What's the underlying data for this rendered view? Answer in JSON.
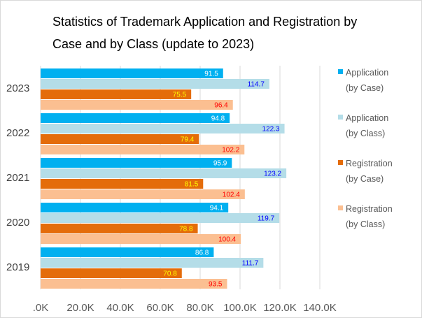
{
  "chart": {
    "title_line1": "Statistics of Trademark Application and Registration by",
    "title_line2": "Case and by Class (update to 2023)"
  },
  "legend": [
    {
      "line1": "Application",
      "line2": "(by Case)",
      "color": "#00b0f0"
    },
    {
      "line1": "Application",
      "line2": "(by Class)",
      "color": "#b4dde8"
    },
    {
      "line1": "Registration",
      "line2": "(by Case)",
      "color": "#e46c0a"
    },
    {
      "line1": "Registration",
      "line2": "(by Class)",
      "color": "#fbbf91"
    }
  ],
  "chart_data": {
    "type": "bar",
    "orientation": "horizontal",
    "title": "Statistics of Trademark Application and Registration by Case and by Class (update to 2023)",
    "categories": [
      "2023",
      "2022",
      "2021",
      "2020",
      "2019"
    ],
    "series": [
      {
        "name": "Application (by Case)",
        "values": [
          91.5,
          94.8,
          95.9,
          94.1,
          86.8
        ],
        "color": "#00b0f0",
        "label_color": "#ffffff"
      },
      {
        "name": "Application (by Class)",
        "values": [
          114.7,
          122.3,
          123.2,
          119.7,
          111.7
        ],
        "color": "#b4dde8",
        "label_color": "#0000ff"
      },
      {
        "name": "Registration (by Case)",
        "values": [
          75.5,
          79.4,
          81.5,
          78.8,
          70.8
        ],
        "color": "#e46c0a",
        "label_color": "#ffff00"
      },
      {
        "name": "Registration (by Class)",
        "values": [
          96.4,
          102.2,
          102.4,
          100.4,
          93.5
        ],
        "color": "#fbbf91",
        "label_color": "#ff0000"
      }
    ],
    "xlim": [
      0,
      140
    ],
    "x_ticks": [
      ".0K",
      "20.0K",
      "40.0K",
      "60.0K",
      "80.0K",
      "100.0K",
      "120.0K",
      "140.0K"
    ],
    "grid": true,
    "legend_position": "right"
  }
}
